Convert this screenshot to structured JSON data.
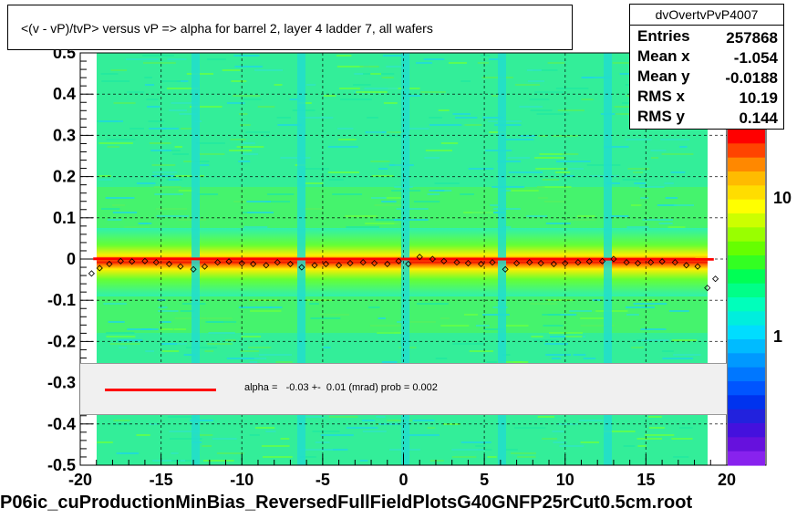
{
  "title": "<(v - vP)/tvP> versus   vP => alpha for barrel 2, layer 4 ladder 7, all wafers",
  "footer": "P06ic_cuProductionMinBias_ReversedFullFieldPlotsG40GNFP25rCut0.5cm.root",
  "stats": {
    "name": "dvOvertvPvP4007",
    "rows": [
      {
        "label": "Entries",
        "value": "257868"
      },
      {
        "label": "Mean x",
        "value": "-1.054"
      },
      {
        "label": "Mean y",
        "value": "-0.0188"
      },
      {
        "label": "RMS x",
        "value": "10.19"
      },
      {
        "label": "RMS y",
        "value": "0.144"
      }
    ]
  },
  "legend": {
    "text": "alpha =   -0.03 +-  0.01 (mrad) prob = 0.002",
    "line_color": "#ff0000"
  },
  "chart_data": {
    "type": "heatmap",
    "x_range": [
      -20,
      20
    ],
    "y_range": [
      -0.5,
      0.5
    ],
    "x_ticks": [
      "-20",
      "-15",
      "-10",
      "-5",
      "0",
      "5",
      "10",
      "15",
      "20"
    ],
    "y_ticks": [
      "0.5",
      "0.4",
      "0.3",
      "0.2",
      "0.1",
      "0",
      "-0.1",
      "-0.2",
      "-0.3",
      "-0.4",
      "-0.5"
    ],
    "colorbar_ticks": [
      "10",
      "1"
    ],
    "colorbar_scale": "log",
    "grid": "dashed",
    "fit_line": {
      "slope_mrad": -0.03,
      "error_mrad": 0.01,
      "prob": 0.002,
      "color": "#ff0000"
    },
    "profile_points": [
      {
        "x": -19.3,
        "y": -0.035
      },
      {
        "x": -18.8,
        "y": -0.022
      },
      {
        "x": -18.2,
        "y": -0.012
      },
      {
        "x": -17.5,
        "y": -0.005
      },
      {
        "x": -16.8,
        "y": -0.006
      },
      {
        "x": -16.0,
        "y": -0.005
      },
      {
        "x": -15.3,
        "y": -0.008
      },
      {
        "x": -14.5,
        "y": -0.012
      },
      {
        "x": -13.8,
        "y": -0.018
      },
      {
        "x": -13.0,
        "y": -0.025
      },
      {
        "x": -12.3,
        "y": -0.018
      },
      {
        "x": -11.5,
        "y": -0.008
      },
      {
        "x": -10.8,
        "y": -0.006
      },
      {
        "x": -10.0,
        "y": -0.01
      },
      {
        "x": -9.3,
        "y": -0.012
      },
      {
        "x": -8.5,
        "y": -0.015
      },
      {
        "x": -7.8,
        "y": -0.008
      },
      {
        "x": -7.0,
        "y": -0.012
      },
      {
        "x": -6.3,
        "y": -0.02
      },
      {
        "x": -5.5,
        "y": -0.015
      },
      {
        "x": -4.8,
        "y": -0.012
      },
      {
        "x": -4.0,
        "y": -0.015
      },
      {
        "x": -3.3,
        "y": -0.01
      },
      {
        "x": -2.5,
        "y": -0.008
      },
      {
        "x": -1.8,
        "y": -0.01
      },
      {
        "x": -1.0,
        "y": -0.012
      },
      {
        "x": -0.3,
        "y": -0.005
      },
      {
        "x": 0.3,
        "y": -0.012
      },
      {
        "x": 1.0,
        "y": 0.005
      },
      {
        "x": 1.8,
        "y": 0.0
      },
      {
        "x": 2.5,
        "y": -0.005
      },
      {
        "x": 3.3,
        "y": -0.008
      },
      {
        "x": 4.0,
        "y": -0.01
      },
      {
        "x": 4.8,
        "y": -0.012
      },
      {
        "x": 5.5,
        "y": -0.008
      },
      {
        "x": 6.3,
        "y": -0.025
      },
      {
        "x": 7.0,
        "y": -0.01
      },
      {
        "x": 7.8,
        "y": -0.008
      },
      {
        "x": 8.5,
        "y": -0.01
      },
      {
        "x": 9.3,
        "y": -0.012
      },
      {
        "x": 10.0,
        "y": -0.01
      },
      {
        "x": 10.8,
        "y": -0.008
      },
      {
        "x": 11.5,
        "y": -0.006
      },
      {
        "x": 12.3,
        "y": -0.005
      },
      {
        "x": 13.0,
        "y": 0.0
      },
      {
        "x": 13.8,
        "y": -0.008
      },
      {
        "x": 14.5,
        "y": -0.01
      },
      {
        "x": 15.3,
        "y": -0.008
      },
      {
        "x": 16.0,
        "y": -0.006
      },
      {
        "x": 16.8,
        "y": -0.008
      },
      {
        "x": 17.5,
        "y": -0.015
      },
      {
        "x": 18.2,
        "y": -0.018
      },
      {
        "x": 18.8,
        "y": -0.07
      },
      {
        "x": 19.3,
        "y": -0.048
      }
    ]
  }
}
